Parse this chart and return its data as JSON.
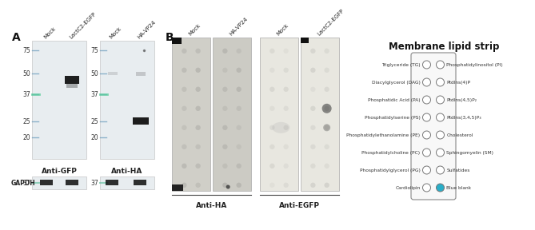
{
  "title": "Membrane lipid strip",
  "left_labels": [
    "Triglyceride (TG)",
    "Diacylglycerol (DAG)",
    "Phosphatidic Acid (PA)",
    "Phosphatidylserine (PS)",
    "Phosphatidylethanolamine (PE)",
    "Phosphatidylcholine (PC)",
    "Phosphatidylglycerol (PG)",
    "Cardiolipin"
  ],
  "right_labels": [
    "Phosphatidylinositol (PI)",
    "PtdIns(4)P",
    "PtdIns(4,5)P₂",
    "PtdIns(3,4,5)P₃",
    "Cholesterol",
    "Sphingomyelin (SM)",
    "Sulfatides",
    "Blue blank"
  ],
  "panel_A_label": "A",
  "panel_B_label": "B",
  "anti_gfp": "Anti-GFP",
  "anti_ha_A": "Anti-HA",
  "anti_ha_B": "Anti-HA",
  "anti_egfp": "Anti-EGFP",
  "gapdh_label": "GAPDH",
  "mw_vals": [
    75,
    50,
    37,
    25,
    20
  ],
  "col_headers_A": [
    "Mock",
    "LactC2-EGFP",
    "Mock",
    "HA-VP24"
  ],
  "col_headers_B": [
    "Mock",
    "HA-VP24",
    "Mock",
    "LactC2-EGFP"
  ],
  "gel_bg": "#e8edf0",
  "gel_bg2": "#e5eaed",
  "blot_bg": "#d0cfc8",
  "blot_bg2": "#cccbc4",
  "blot_bg_light": "#e8e7e0",
  "strip_fill": "#f5f5f5",
  "strip_border": "#888888",
  "circle_edge": "#777777",
  "circle_fill_empty": "#ffffff",
  "circle_fill_blue": "#29aec8",
  "band_dark": "#0d0d0d",
  "band_faint": "#555555",
  "mw_color": "#aaaaaa",
  "mw_marker_color": "#6699bb",
  "gapdh_marker_color": "#55bb99",
  "title_fontsize": 8.5,
  "label_fontsize": 4.8,
  "mw_fontsize": 5.5,
  "header_fontsize": 5.0
}
